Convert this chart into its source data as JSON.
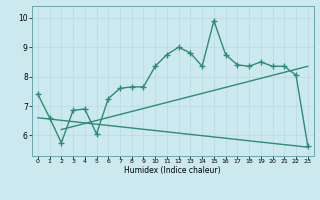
{
  "line1_x": [
    0,
    1,
    2,
    3,
    4,
    5,
    6,
    7,
    8,
    9,
    10,
    11,
    12,
    13,
    14,
    15,
    16,
    17,
    18,
    19,
    20,
    21,
    22,
    23
  ],
  "line1_y": [
    7.4,
    6.6,
    5.75,
    6.85,
    6.9,
    6.05,
    7.25,
    7.6,
    7.65,
    7.65,
    8.35,
    8.75,
    9.0,
    8.8,
    8.35,
    9.9,
    8.75,
    8.4,
    8.35,
    8.5,
    8.35,
    8.35,
    8.05,
    5.65
  ],
  "line2_x": [
    2,
    23
  ],
  "line2_y": [
    6.2,
    8.35
  ],
  "line3_x": [
    0,
    23
  ],
  "line3_y": [
    6.6,
    5.6
  ],
  "color": "#2e8b74",
  "bg_color": "#cce9f0",
  "grid_color": "#b8d8e0",
  "xlabel": "Humidex (Indice chaleur)",
  "xlim": [
    -0.5,
    23.5
  ],
  "ylim": [
    5.3,
    10.4
  ],
  "yticks": [
    6,
    7,
    8,
    9,
    10
  ],
  "xticks": [
    0,
    1,
    2,
    3,
    4,
    5,
    6,
    7,
    8,
    9,
    10,
    11,
    12,
    13,
    14,
    15,
    16,
    17,
    18,
    19,
    20,
    21,
    22,
    23
  ],
  "marker": "+",
  "markersize": 4,
  "linewidth": 1.0
}
